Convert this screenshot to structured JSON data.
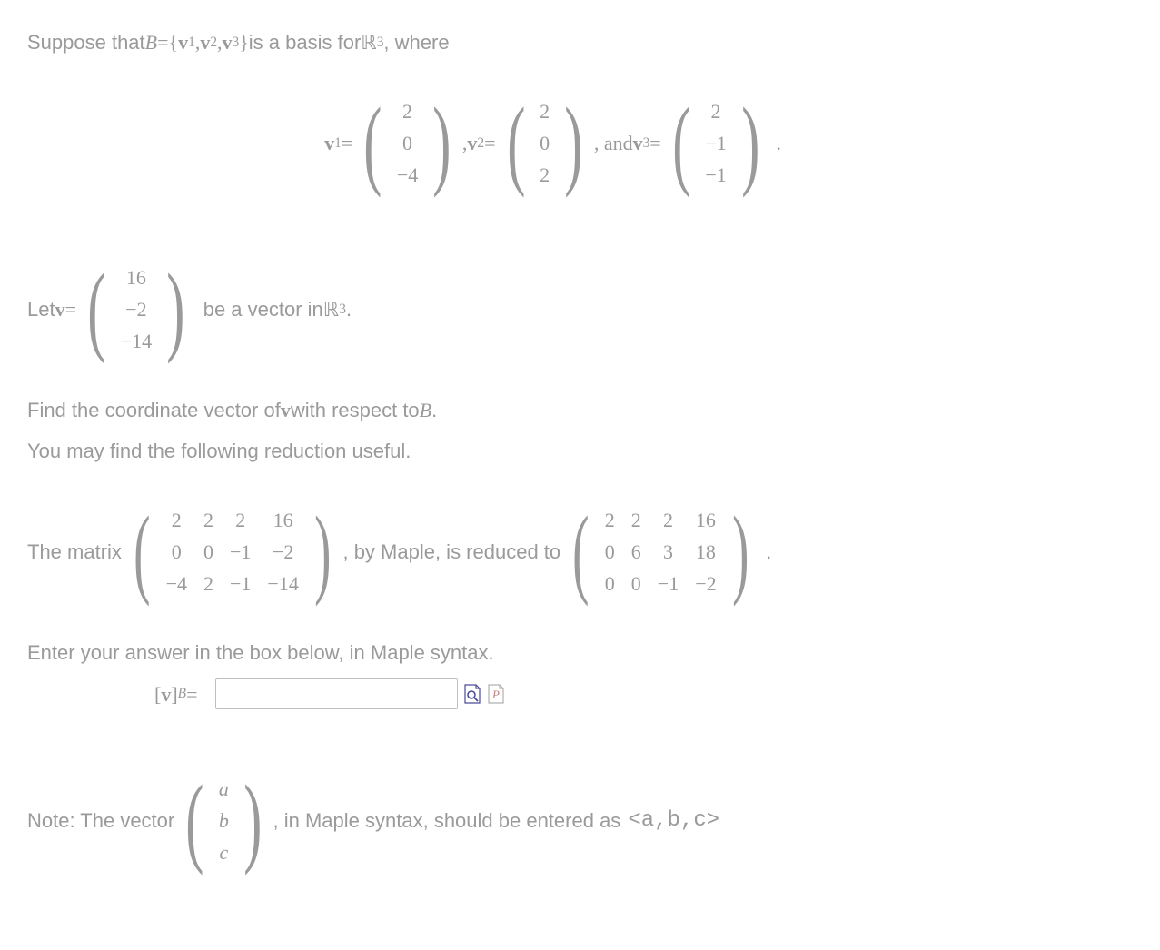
{
  "text_color": "#9a9a9a",
  "bg_color": "#ffffff",
  "font_size_body": 22,
  "line1": {
    "prefix": "Suppose that ",
    "B": "B",
    "equals": " = ",
    "lbrace": "{",
    "v1": "v",
    "s1": "1",
    "v2": "v",
    "s2": "2",
    "v3": "v",
    "s3": "3",
    "rbrace": "}",
    "middle": " is a basis for ",
    "R": "ℝ",
    "exp": "3",
    "suffix": " , where"
  },
  "basis_vectors": {
    "v1_label": "v",
    "v1_sub": "1",
    "v1_eq": " = ",
    "v1_values": [
      "2",
      "0",
      "−4"
    ],
    "sep1": ", ",
    "v2_label": "v",
    "v2_sub": "2",
    "v2_eq": " = ",
    "v2_values": [
      "2",
      "0",
      "2"
    ],
    "sep2": ", and  ",
    "v3_label": "v",
    "v3_sub": "3",
    "v3_eq": " = ",
    "v3_values": [
      "2",
      "−1",
      "−1"
    ],
    "period": "."
  },
  "let_v": {
    "prefix": "Let ",
    "v": "v",
    "eq": " = ",
    "values": [
      "16",
      "−2",
      "−14"
    ],
    "middle": "be a vector in ",
    "R": "ℝ",
    "exp": "3",
    "suffix": " ."
  },
  "find_line": {
    "prefix": "Find the coordinate vector of ",
    "v": "v",
    "middle": " with respect to ",
    "B": "B",
    "suffix": "."
  },
  "useful_line": "You may find the following reduction useful.",
  "matrix_line": {
    "prefix": "The matrix ",
    "mat1": {
      "rows": 3,
      "cols": 4,
      "cells": [
        "2",
        "2",
        "2",
        "16",
        "0",
        "0",
        "−1",
        "−2",
        "−4",
        "2",
        "−1",
        "−14"
      ]
    },
    "middle": ", by Maple, is reduced to ",
    "mat2": {
      "rows": 3,
      "cols": 4,
      "cells": [
        "2",
        "2",
        "2",
        "16",
        "0",
        "6",
        "3",
        "18",
        "0",
        "0",
        "−1",
        "−2"
      ]
    },
    "suffix": "."
  },
  "enter_line": "Enter your answer in the box below, in Maple syntax.",
  "answer": {
    "lbracket": "[",
    "v": "v",
    "rbracket": "]",
    "sub": "B",
    "eq": " = "
  },
  "note": {
    "prefix": "Note: The vector ",
    "values": [
      "a",
      "b",
      "c"
    ],
    "middle": ", in Maple syntax, should be entered as  ",
    "code": "<a,b,c>"
  },
  "icon_colors": {
    "preview_border": "#4a4a9a",
    "preview_fill": "#ffffff",
    "plot_border": "#b0b0b0",
    "plot_accent": "#c08080"
  }
}
